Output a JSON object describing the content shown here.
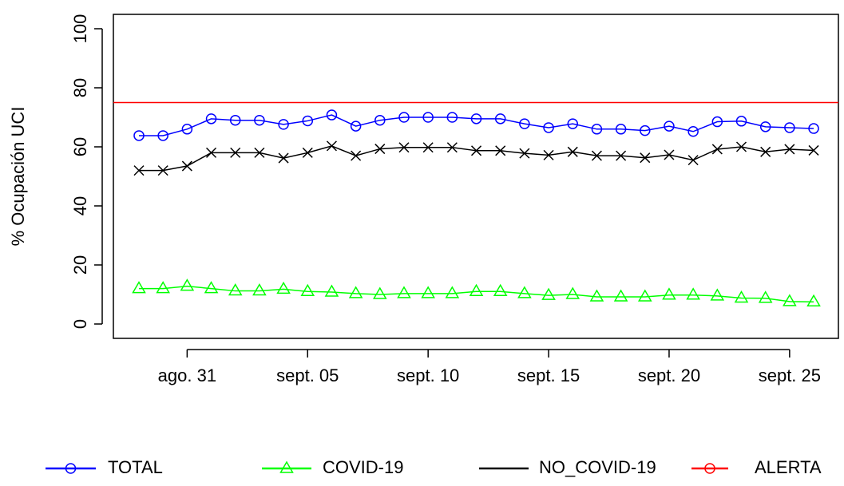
{
  "chart_data": {
    "type": "line",
    "y_label": "% Ocupación UCI",
    "categories": [
      null,
      null,
      "ago. 31",
      null,
      null,
      null,
      null,
      "sept. 05",
      null,
      null,
      null,
      null,
      "sept. 10",
      null,
      null,
      null,
      null,
      "sept. 15",
      null,
      null,
      null,
      null,
      "sept. 20",
      null,
      null,
      null,
      null,
      "sept. 25",
      null
    ],
    "series": [
      {
        "name": "TOTAL",
        "color": "#0000ff",
        "marker": "circle",
        "values": [
          63.8,
          63.8,
          66,
          69.5,
          69,
          69,
          67.6,
          68.8,
          70.8,
          67,
          69,
          70,
          70,
          70,
          69.5,
          69.5,
          67.8,
          66.5,
          67.8,
          66,
          66,
          65.5,
          67,
          65.2,
          68.5,
          68.7,
          66.8,
          66.5,
          66.2
        ]
      },
      {
        "name": "COVID-19",
        "color": "#00ff00",
        "marker": "triangle",
        "values": [
          12,
          12,
          12.8,
          12,
          11.2,
          11.2,
          11.8,
          11,
          10.8,
          10.3,
          10,
          10.3,
          10.3,
          10.3,
          11,
          11,
          10.3,
          9.7,
          10,
          9.2,
          9.2,
          9.2,
          9.8,
          9.8,
          9.5,
          8.8,
          8.7,
          7.6,
          7.5
        ]
      },
      {
        "name": "NO_COVID-19",
        "color": "#000000",
        "marker": "cross",
        "values": [
          52,
          52,
          53.5,
          58,
          58,
          58,
          56.2,
          58,
          60.3,
          57,
          59.3,
          59.8,
          59.8,
          59.8,
          58.7,
          58.7,
          57.8,
          57.2,
          58.3,
          57,
          57,
          56.3,
          57.3,
          55.5,
          59.2,
          60,
          58.3,
          59.2,
          58.8
        ]
      }
    ],
    "alert": {
      "name": "ALERTA",
      "color": "#ff0000",
      "value": 75
    },
    "ylim": [
      0,
      100
    ],
    "yticks": [
      0,
      20,
      40,
      60,
      80,
      100
    ]
  }
}
